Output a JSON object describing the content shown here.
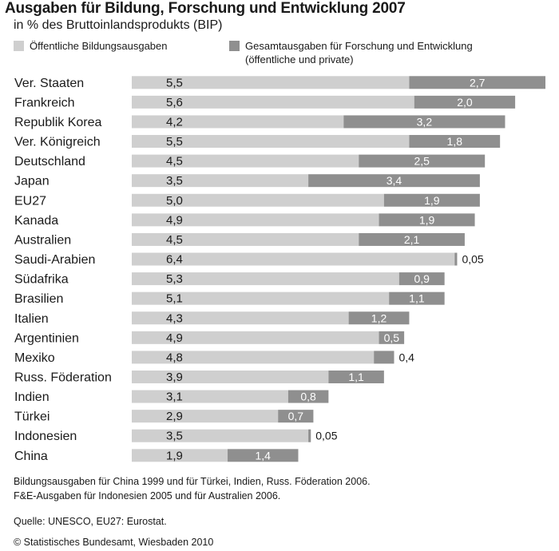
{
  "chart_data": {
    "type": "bar",
    "stacked": true,
    "orientation": "horizontal",
    "title": "Ausgaben für Bildung, Forschung und Entwicklung 2007",
    "subtitle": "in % des Bruttoinlandsprodukts (BIP)",
    "legend": {
      "public": "Öffentliche Bildungsausgaben",
      "research": "Gesamtausgaben für Forschung und Entwicklung",
      "research_sub": "(öffentliche und private)"
    },
    "colors": {
      "public": "#cfcfcf",
      "research": "#8f8f8f",
      "text": "#1a1a1a"
    },
    "categories": [
      "Ver. Staaten",
      "Frankreich",
      "Republik Korea",
      "Ver. Königreich",
      "Deutschland",
      "Japan",
      "EU27",
      "Kanada",
      "Australien",
      "Saudi-Arabien",
      "Südafrika",
      "Brasilien",
      "Italien",
      "Argentinien",
      "Mexiko",
      "Russ. Föderation",
      "Indien",
      "Türkei",
      "Indonesien",
      "China"
    ],
    "series": [
      {
        "name": "Öffentliche Bildungsausgaben",
        "values": [
          5.5,
          5.6,
          4.2,
          5.5,
          4.5,
          3.5,
          5.0,
          4.9,
          4.5,
          6.4,
          5.3,
          5.1,
          4.3,
          4.9,
          4.8,
          3.9,
          3.1,
          2.9,
          3.5,
          1.9
        ]
      },
      {
        "name": "Gesamtausgaben für Forschung und Entwicklung",
        "values": [
          2.7,
          2.0,
          3.2,
          1.8,
          2.5,
          3.4,
          1.9,
          1.9,
          2.1,
          0.05,
          0.9,
          1.1,
          1.2,
          0.5,
          0.4,
          1.1,
          0.8,
          0.7,
          0.05,
          1.4
        ]
      }
    ],
    "public_labels": [
      "5,5",
      "5,6",
      "4,2",
      "5,5",
      "4,5",
      "3,5",
      "5,0",
      "4,9",
      "4,5",
      "6,4",
      "5,3",
      "5,1",
      "4,3",
      "4,9",
      "4,8",
      "3,9",
      "3,1",
      "2,9",
      "3,5",
      "1,9"
    ],
    "research_labels": [
      "2,7",
      "2,0",
      "3,2",
      "1,8",
      "2,5",
      "3,4",
      "1,9",
      "1,9",
      "2,1",
      "0,05",
      "0,9",
      "1,1",
      "1,2",
      "0,5",
      "0,4",
      "1,1",
      "0,8",
      "0,7",
      "0,05",
      "1,4"
    ],
    "xlim": [
      0,
      8.2
    ]
  },
  "notes": {
    "line1": "Bildungsausgaben für China 1999 und für Türkei, Indien, Russ. Föderation 2006.",
    "line2": "F&E-Ausgaben für Indonesien 2005 und für Australien 2006.",
    "source": "Quelle: UNESCO, EU27: Eurostat.",
    "copyright": "© Statistisches Bundesamt, Wiesbaden 2010"
  }
}
